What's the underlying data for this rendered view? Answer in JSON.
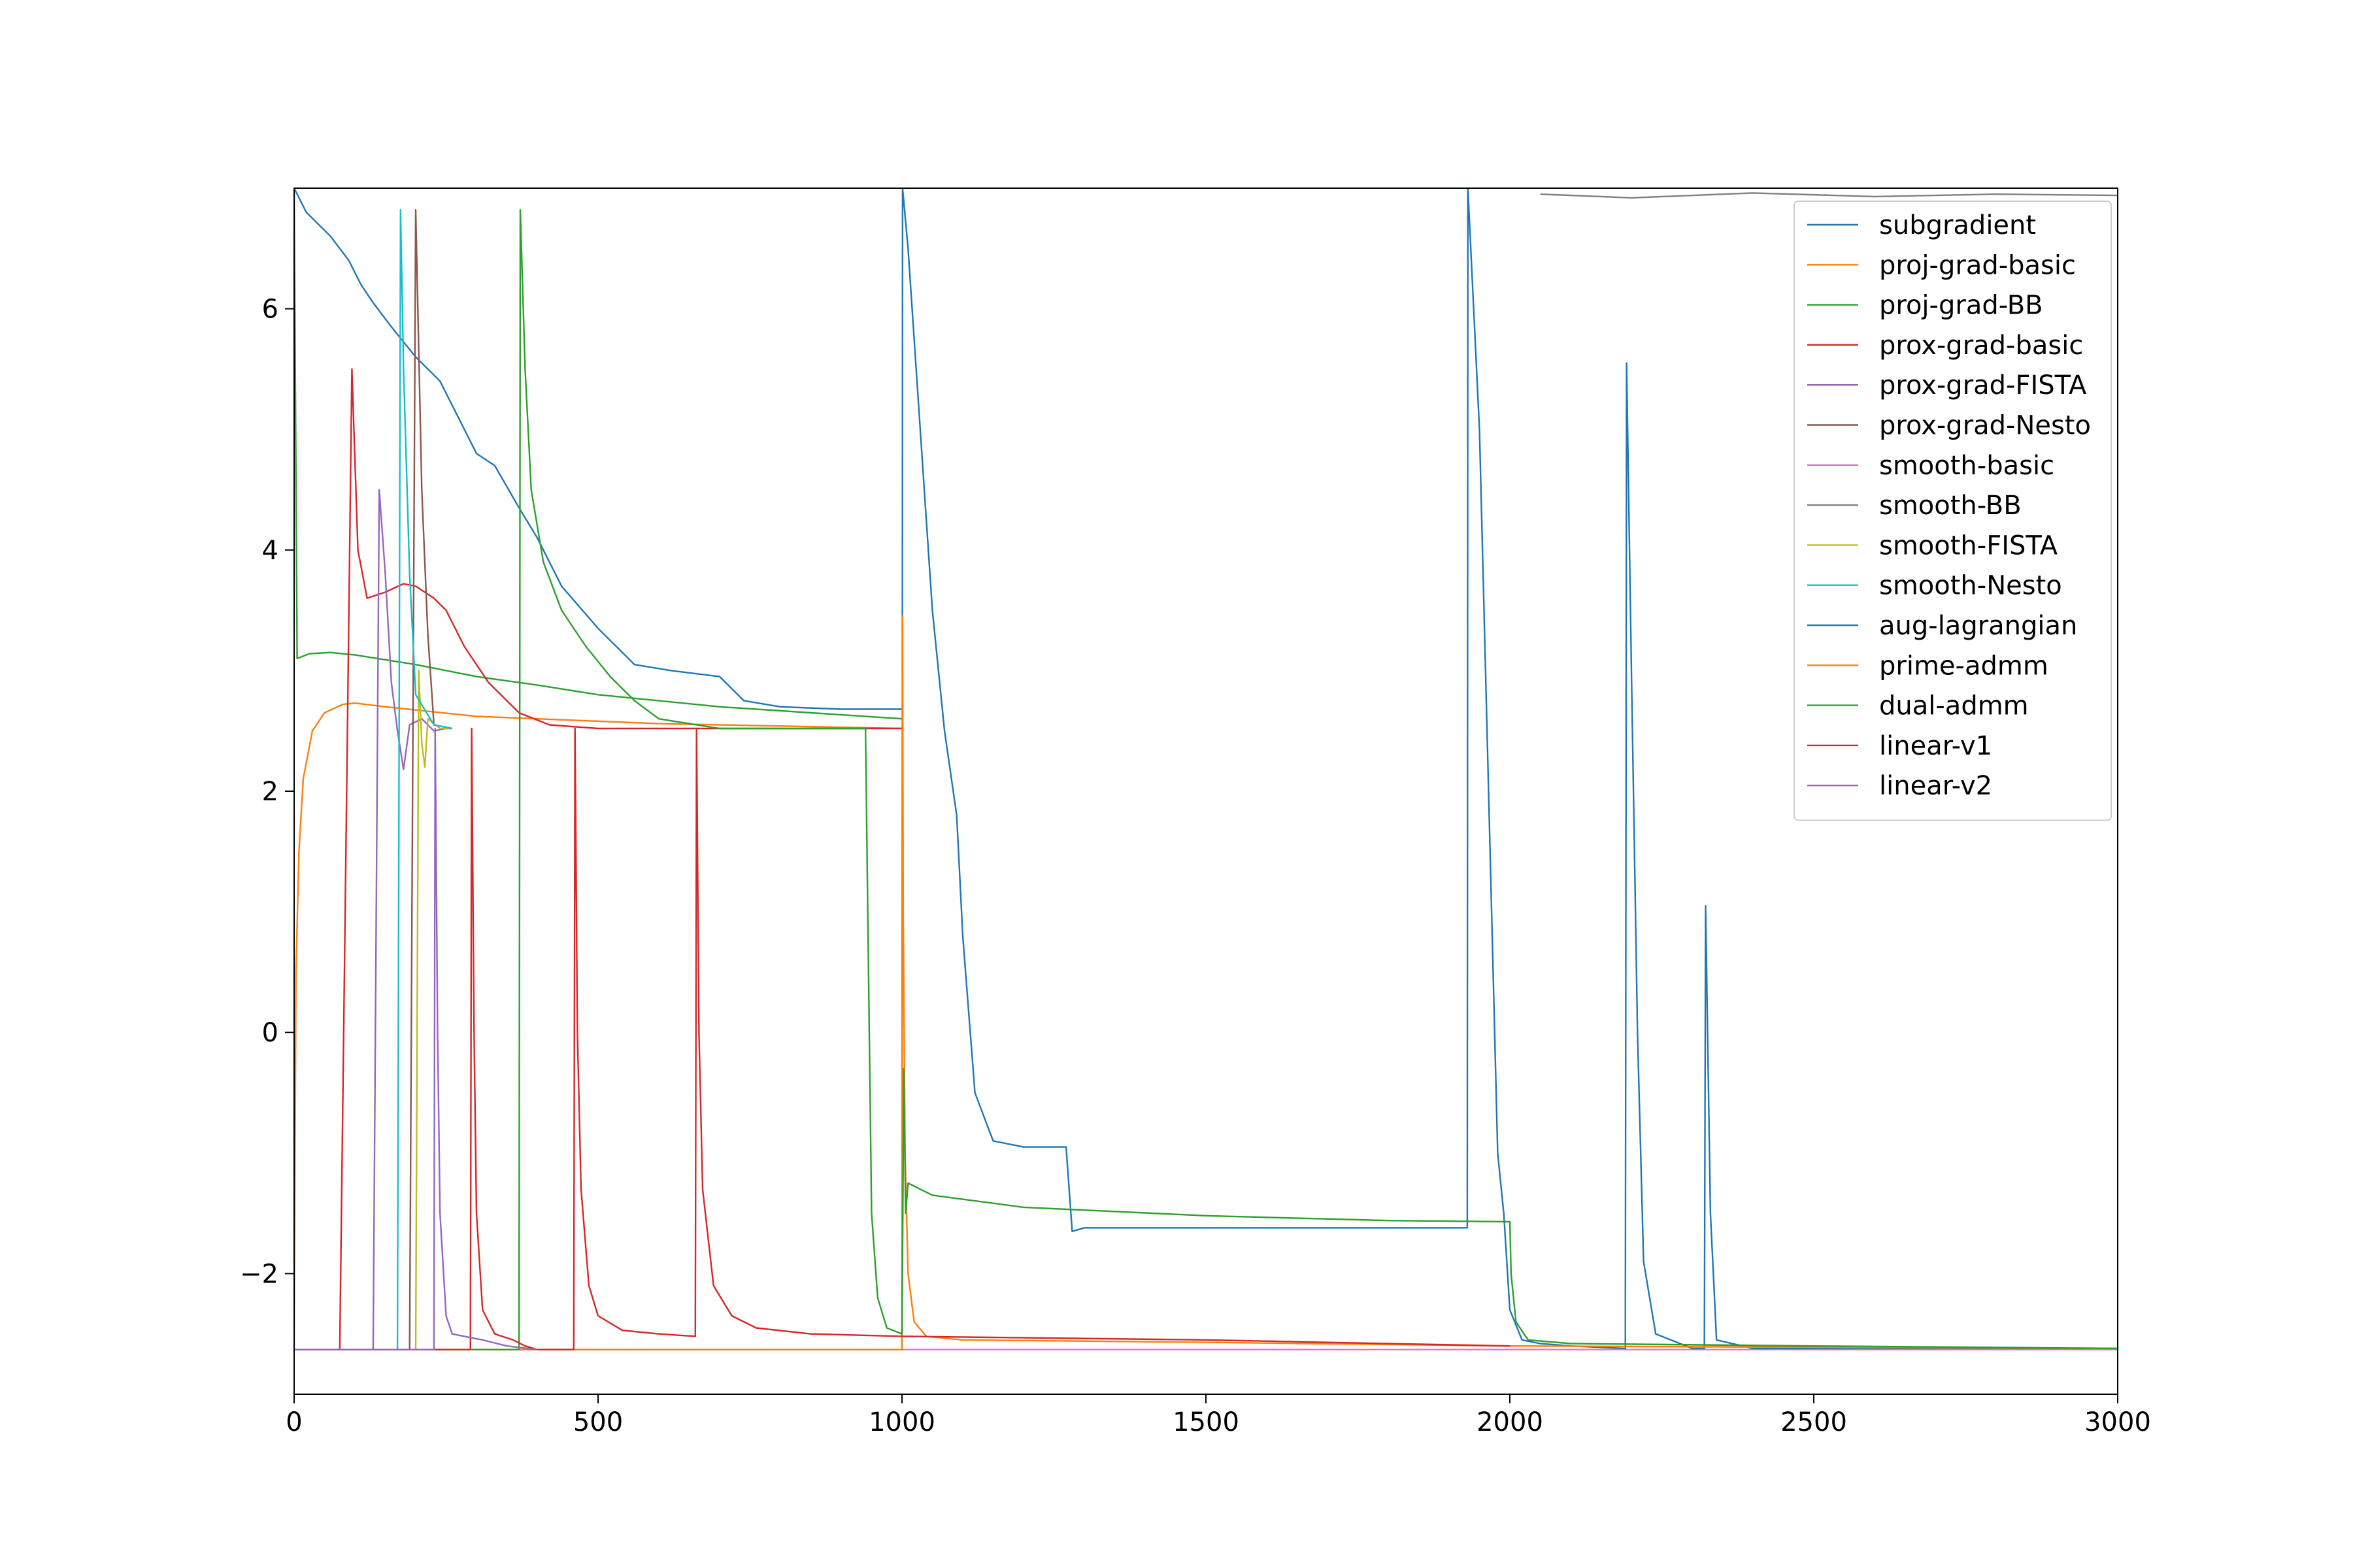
{
  "chart_data": {
    "type": "line",
    "title": "",
    "xlabel": "",
    "ylabel": "",
    "xlim": [
      0,
      3000
    ],
    "ylim": [
      -3,
      7
    ],
    "xticks": [
      0,
      500,
      1000,
      1500,
      2000,
      2500,
      3000
    ],
    "xtick_labels": [
      "0",
      "500",
      "1000",
      "1500",
      "2000",
      "2500",
      "3000"
    ],
    "yticks": [
      -2,
      0,
      2,
      4,
      6
    ],
    "ytick_labels": [
      "−2",
      "0",
      "2",
      "4",
      "6"
    ],
    "grid": false,
    "legend_position": "upper-right",
    "series": [
      {
        "name": "subgradient",
        "color": "#1f77b4",
        "x": [
          0,
          20,
          60,
          90,
          110,
          130,
          160,
          200,
          240,
          270,
          300,
          330,
          370,
          400,
          440,
          500,
          560,
          620,
          700,
          740,
          800,
          900,
          1000
        ],
        "y": [
          7.0,
          6.8,
          6.6,
          6.4,
          6.2,
          6.05,
          5.85,
          5.6,
          5.4,
          5.1,
          4.8,
          4.7,
          4.35,
          4.1,
          3.7,
          3.35,
          3.05,
          3.0,
          2.95,
          2.75,
          2.7,
          2.68,
          2.68
        ]
      },
      {
        "name": "proj-grad-basic",
        "color": "#ff7f0e",
        "x": [
          0,
          3,
          8,
          15,
          30,
          50,
          80,
          100,
          150,
          300,
          600,
          1000
        ],
        "y": [
          -2.63,
          0.5,
          1.5,
          2.1,
          2.5,
          2.65,
          2.72,
          2.73,
          2.7,
          2.62,
          2.56,
          2.52
        ]
      },
      {
        "name": "proj-grad-BB",
        "color": "#2ca02c",
        "x": [
          0,
          5,
          15,
          25,
          60,
          100,
          200,
          300,
          400,
          500,
          700,
          1000
        ],
        "y": [
          7.0,
          3.1,
          3.12,
          3.14,
          3.15,
          3.13,
          3.05,
          2.95,
          2.88,
          2.8,
          2.7,
          2.6
        ]
      },
      {
        "name": "prox-grad-basic",
        "color": "#d62728",
        "x": [
          0,
          75,
          95,
          105,
          120,
          150,
          180,
          200,
          230,
          250,
          280,
          320,
          370,
          420,
          500,
          700,
          1000
        ],
        "y": [
          -2.63,
          -2.63,
          5.5,
          4.0,
          3.6,
          3.65,
          3.72,
          3.7,
          3.6,
          3.5,
          3.2,
          2.9,
          2.65,
          2.55,
          2.52,
          2.52,
          2.52
        ]
      },
      {
        "name": "prox-grad-FISTA",
        "color": "#9467bd",
        "x": [
          0,
          130,
          140,
          150,
          160,
          170,
          180,
          190,
          210,
          230,
          250,
          260
        ],
        "y": [
          -2.63,
          -2.63,
          4.5,
          3.8,
          2.9,
          2.5,
          2.18,
          2.55,
          2.6,
          2.5,
          2.52,
          2.52
        ]
      },
      {
        "name": "prox-grad-Nesto",
        "color": "#8c564b",
        "x": [
          0,
          190,
          200,
          210,
          220,
          230,
          260
        ],
        "y": [
          -2.63,
          -2.63,
          6.82,
          4.5,
          3.3,
          2.55,
          2.52
        ]
      },
      {
        "name": "smooth-basic",
        "color": "#e377c2",
        "x": [
          0,
          3000
        ],
        "y": [
          -2.63,
          -2.63
        ]
      },
      {
        "name": "smooth-BB",
        "color": "#7f7f7f",
        "x": [
          2050,
          2200,
          2400,
          2600,
          2800,
          3000
        ],
        "y": [
          6.95,
          6.92,
          6.96,
          6.93,
          6.95,
          6.94
        ]
      },
      {
        "name": "smooth-FISTA",
        "color": "#bcbd22",
        "x": [
          0,
          200,
          205,
          210,
          215,
          220,
          240,
          260
        ],
        "y": [
          -2.63,
          -2.63,
          3.0,
          2.4,
          2.2,
          2.6,
          2.52,
          2.52
        ]
      },
      {
        "name": "smooth-Nesto",
        "color": "#17becf",
        "x": [
          0,
          170,
          175,
          180,
          190,
          200,
          230,
          260
        ],
        "y": [
          -2.63,
          -2.63,
          6.82,
          5.5,
          3.8,
          2.8,
          2.55,
          2.52
        ]
      },
      {
        "name": "aug-lagrangian",
        "color": "#1f77b4",
        "x": [
          0,
          1000,
          1001,
          1010,
          1030,
          1050,
          1070,
          1090,
          1100,
          1120,
          1150,
          1200,
          1270,
          1280,
          1300,
          1500,
          1930,
          1931,
          1950,
          1970,
          1980,
          1990,
          2000,
          2020,
          2050,
          2100,
          2190,
          2192,
          2200,
          2210,
          2220,
          2240,
          2300,
          2320,
          2322,
          2330,
          2340,
          2400,
          3000
        ],
        "y": [
          -2.63,
          -2.63,
          7.0,
          6.5,
          5.0,
          3.5,
          2.5,
          1.8,
          0.8,
          -0.5,
          -0.9,
          -0.95,
          -0.95,
          -1.65,
          -1.62,
          -1.62,
          -1.62,
          7.0,
          5.0,
          1.0,
          -1.0,
          -1.5,
          -2.3,
          -2.55,
          -2.58,
          -2.6,
          -2.62,
          5.55,
          3.0,
          0.0,
          -1.9,
          -2.5,
          -2.62,
          -2.62,
          1.05,
          -1.5,
          -2.55,
          -2.62,
          -2.62
        ]
      },
      {
        "name": "prime-admm",
        "color": "#ff7f0e",
        "x": [
          0,
          1000,
          1001,
          1002,
          1005,
          1010,
          1020,
          1040,
          1100,
          1500,
          2000,
          3000
        ],
        "y": [
          -2.63,
          -2.63,
          3.45,
          1.0,
          -1.0,
          -2.0,
          -2.4,
          -2.52,
          -2.55,
          -2.57,
          -2.6,
          -2.62
        ]
      },
      {
        "name": "dual-admm",
        "color": "#2ca02c",
        "x": [
          0,
          370,
          372,
          380,
          390,
          410,
          440,
          480,
          520,
          560,
          600,
          700,
          940,
          945,
          950,
          960,
          975,
          1000,
          1003,
          1006,
          1010,
          1050,
          1200,
          1500,
          1800,
          2000,
          2002,
          2010,
          2030,
          2100,
          2500,
          3000
        ],
        "y": [
          -2.63,
          -2.63,
          6.82,
          5.5,
          4.5,
          3.9,
          3.5,
          3.2,
          2.95,
          2.75,
          2.6,
          2.52,
          2.52,
          0.5,
          -1.5,
          -2.2,
          -2.45,
          -2.5,
          -0.3,
          -1.5,
          -1.25,
          -1.35,
          -1.45,
          -1.52,
          -1.56,
          -1.57,
          -2.0,
          -2.4,
          -2.55,
          -2.58,
          -2.6,
          -2.62
        ]
      },
      {
        "name": "linear-v1",
        "color": "#d62728",
        "x": [
          0,
          290,
          292,
          296,
          300,
          310,
          330,
          360,
          380,
          400,
          460,
          462,
          466,
          472,
          485,
          500,
          540,
          600,
          660,
          662,
          666,
          672,
          690,
          720,
          760,
          850,
          1000,
          1500,
          2000
        ],
        "y": [
          -2.63,
          -2.63,
          2.52,
          0.0,
          -1.5,
          -2.3,
          -2.5,
          -2.55,
          -2.6,
          -2.63,
          -2.63,
          2.52,
          0.0,
          -1.3,
          -2.1,
          -2.35,
          -2.47,
          -2.5,
          -2.52,
          2.52,
          0.0,
          -1.3,
          -2.1,
          -2.35,
          -2.45,
          -2.5,
          -2.52,
          -2.55,
          -2.6
        ]
      },
      {
        "name": "linear-v2",
        "color": "#9467bd",
        "x": [
          0,
          230,
          232,
          236,
          240,
          250,
          260,
          280,
          310,
          350,
          400
        ],
        "y": [
          -2.63,
          -2.63,
          2.52,
          0.0,
          -1.5,
          -2.35,
          -2.5,
          -2.52,
          -2.55,
          -2.6,
          -2.63
        ]
      }
    ]
  }
}
